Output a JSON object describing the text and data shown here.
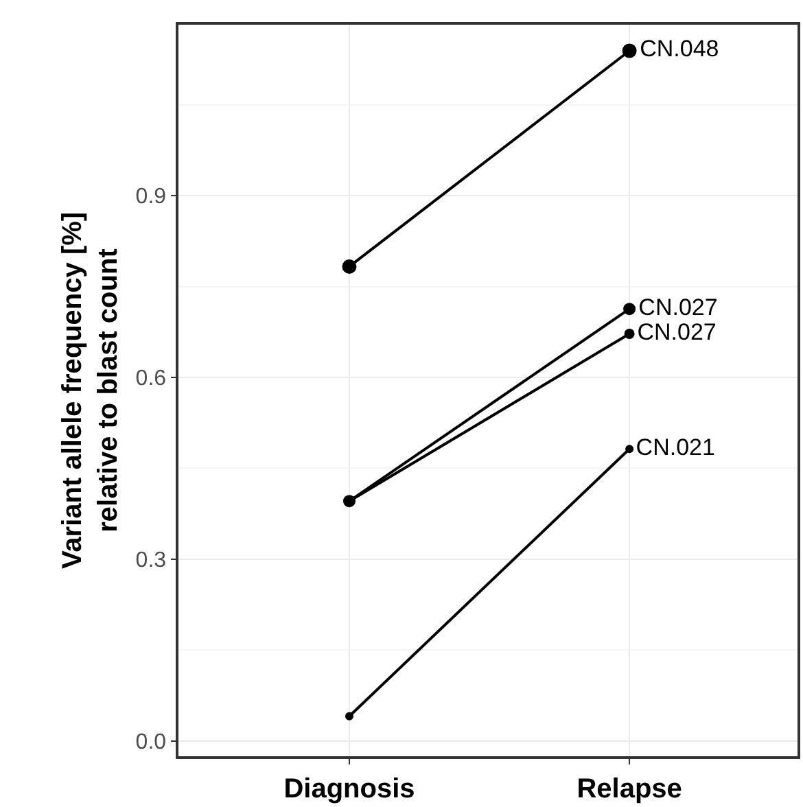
{
  "chart_data": {
    "type": "line",
    "ylabel": "Variant allele frequency [%]\nrelative to blast count",
    "categories": [
      "Diagnosis",
      "Relapse"
    ],
    "series": [
      {
        "name": "CN.048",
        "color": "#000000",
        "values": [
          0.783,
          1.139
        ]
      },
      {
        "name": "CN.027",
        "color": "#000000",
        "values": [
          0.396,
          0.713
        ]
      },
      {
        "name": "CN.027",
        "color": "#000000",
        "values": [
          0.396,
          0.672
        ]
      },
      {
        "name": "CN.021",
        "color": "#000000",
        "values": [
          0.041,
          0.482
        ]
      }
    ],
    "ylim": [
      -0.025,
      1.182
    ],
    "yticks": [
      {
        "value": 0,
        "label": "0.0"
      },
      0.3,
      0.6,
      0.9
    ],
    "grid": true,
    "legend": false,
    "marker": "circle",
    "line_style": "solid"
  }
}
